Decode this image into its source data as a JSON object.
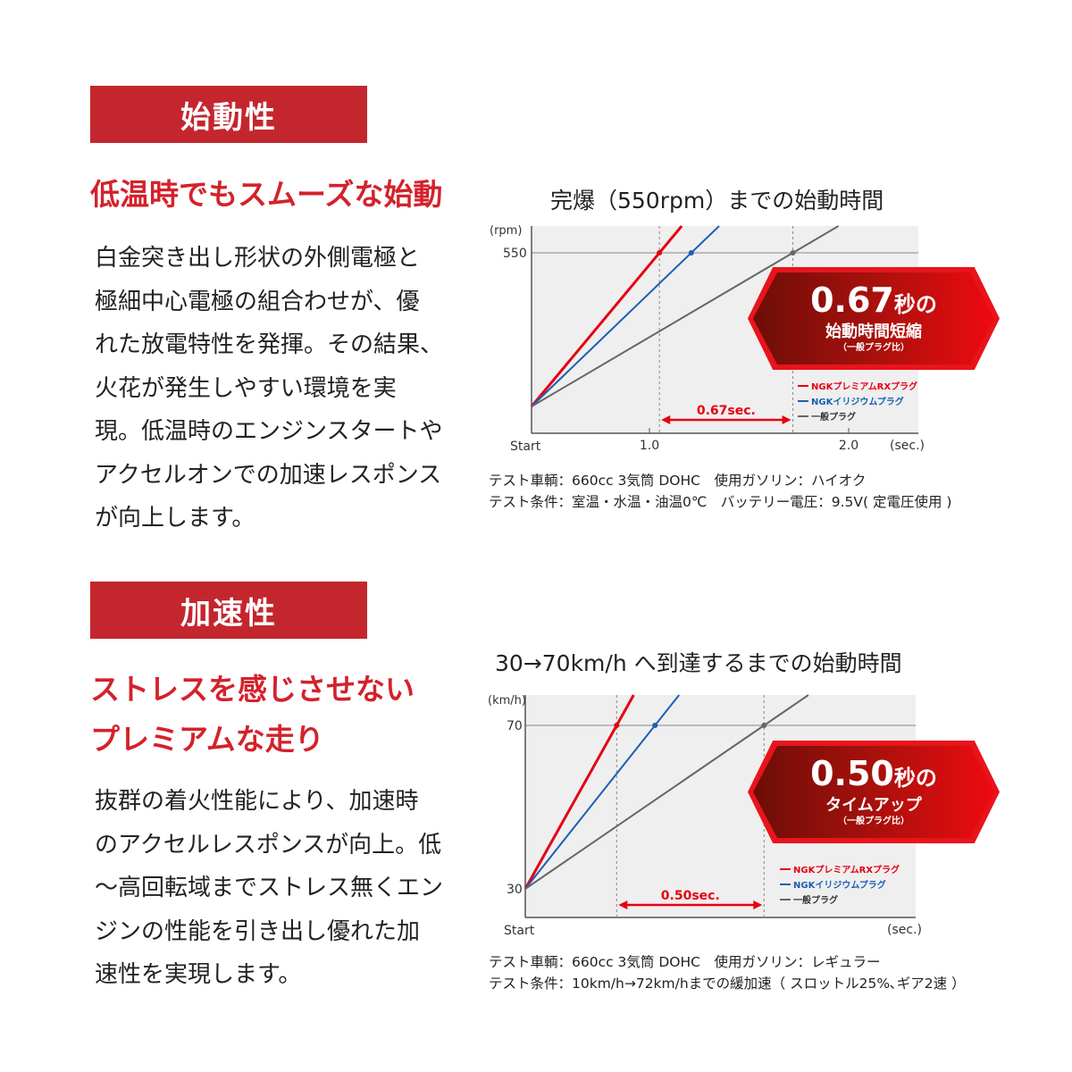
{
  "section1": {
    "banner": "始動性",
    "headline": "低温時でもスムーズな始動",
    "body": "白金突き出し形状の外側電極と\n極細中心電極の組合わせが、優\nれた放電特性を発揮。その結果、\n火花が発生しやすい環境を実\n現。低温時のエンジンスタートや\nアクセルオンでの加速レスポンス\nが向上します。"
  },
  "section2": {
    "banner": "加速性",
    "headline": "ストレスを感じさせない\nプレミアムな走り",
    "body": "抜群の着火性能により、加速時\nのアクセルレスポンスが向上。低\n～高回転域までストレス無くエン\nジンの性能を引き出し優れた加\n速性を実現します。"
  },
  "colors": {
    "banner": "#c4262e",
    "premium_rx": "#e60012",
    "iridium": "#1a5fb4",
    "general": "#666666",
    "plot_bg": "#efefef"
  },
  "chart_data": [
    {
      "type": "line",
      "title": "完爆（550rpm）までの始動時間",
      "ylabel": "(rpm)",
      "xlabel": "(sec.)",
      "x_start_label": "Start",
      "x_ticks": [
        "1.0",
        "2.0"
      ],
      "x_tick_values": [
        1.0,
        2.0
      ],
      "y_ticks": [
        "550"
      ],
      "y_tick_values": [
        550
      ],
      "grid": false,
      "legend_placement": "bottom-right",
      "series": [
        {
          "name": "NGKプレミアムRXプラグ",
          "color": "#e60012",
          "time_to_target": 1.05
        },
        {
          "name": "NGKイリジウムプラグ",
          "color": "#1a5fb4",
          "time_to_target": 1.21
        },
        {
          "name": "一般プラグ",
          "color": "#666666",
          "time_to_target": 1.72
        }
      ],
      "difference_label": "0.67sec.",
      "callout": {
        "value": "0.67",
        "unit": "秒の",
        "line2": "始動時間短縮",
        "line3": "（一般プラグ比）"
      },
      "notes": "テスト車輌：660cc 3気筒 DOHC　使用ガソリン：ハイオク\nテスト条件：室温・水温・油温0℃　バッテリー電圧：9.5V( 定電圧使用 )"
    },
    {
      "type": "line",
      "title": "30→70km/h へ到達するまでの始動時間",
      "ylabel": "(km/h)",
      "xlabel": "(sec.)",
      "x_start_label": "Start",
      "y_ticks": [
        "70",
        "30"
      ],
      "y_tick_values": [
        70,
        30
      ],
      "grid": false,
      "legend_placement": "bottom-right",
      "series": [
        {
          "name": "NGKプレミアムRXプラグ",
          "color": "#e60012",
          "time_to_target": 0.31
        },
        {
          "name": "NGKイリジウムプラグ",
          "color": "#1a5fb4",
          "time_to_target": 0.44
        },
        {
          "name": "一般プラグ",
          "color": "#666666",
          "time_to_target": 0.81
        }
      ],
      "difference_label": "0.50sec.",
      "callout": {
        "value": "0.50",
        "unit": "秒の",
        "line2": "タイムアップ",
        "line3": "（一般プラグ比）"
      },
      "notes": "テスト車輌：660cc 3気筒 DOHC　使用ガソリン：レギュラー\nテスト条件：10km/h→72km/hまでの緩加速（ スロットル25%､ギア2速 ）"
    }
  ]
}
